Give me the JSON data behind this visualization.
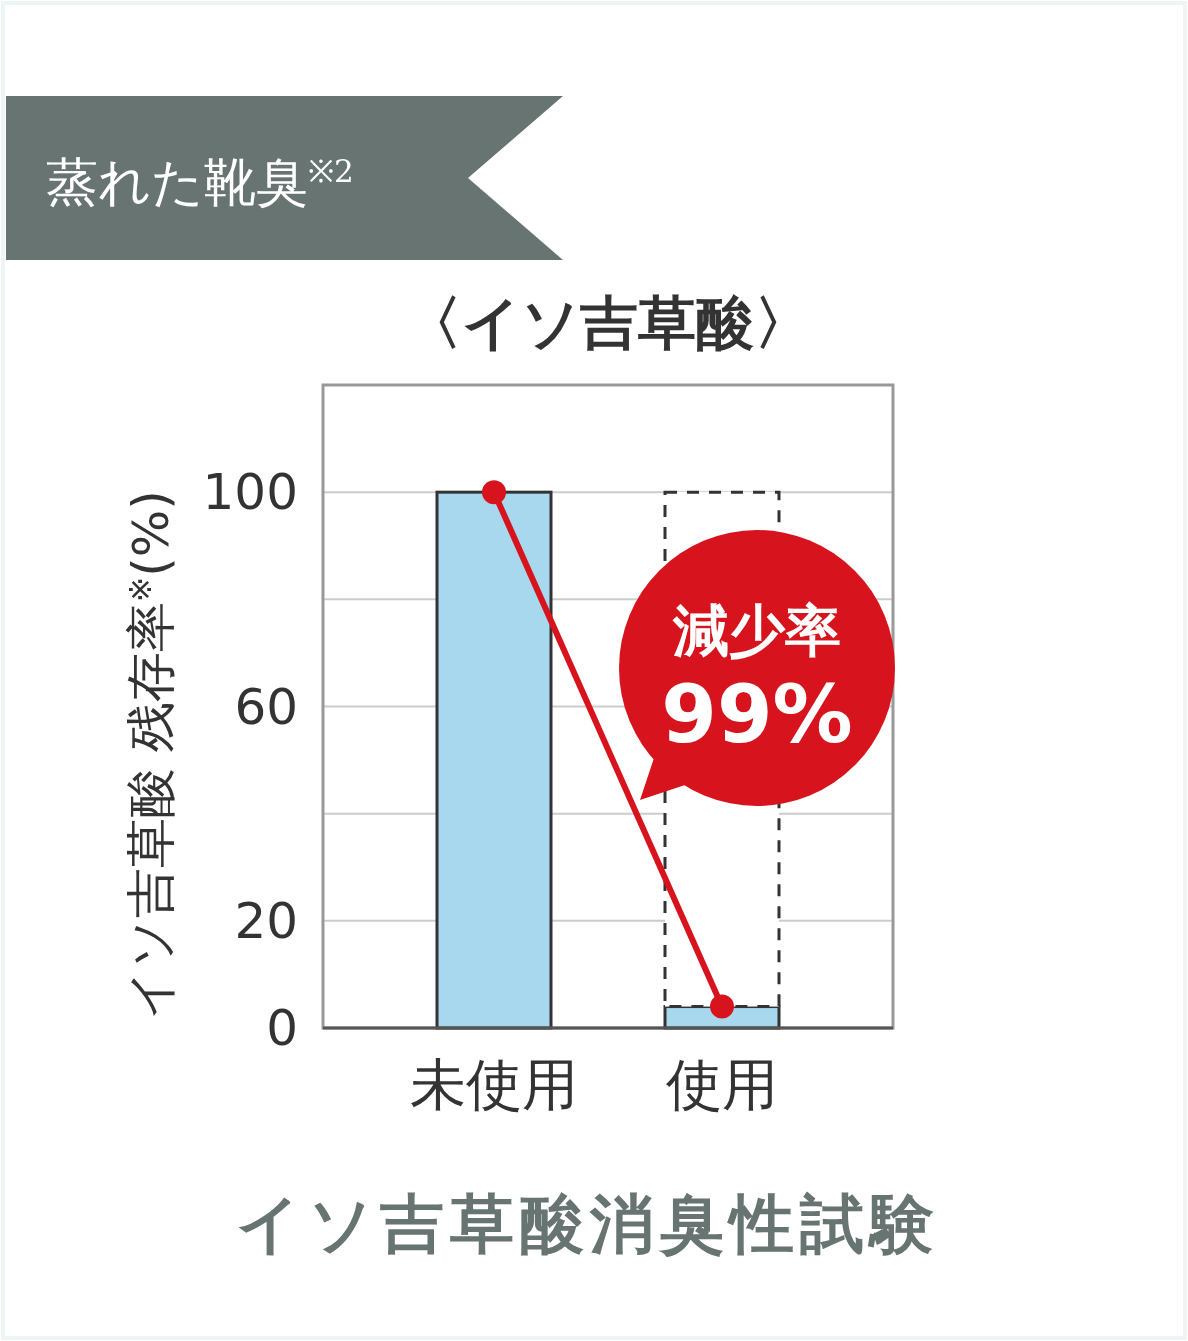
{
  "chart_data": {
    "type": "bar",
    "title": "蒸れた靴臭$^{※2}$",
    "subtitle": "〈イソ吉草酸〉",
    "ylabel": "イソ吉草酸 残存率$^{※}$(%)",
    "categories": [
      "未使用",
      "使用"
    ],
    "series": [
      {
        "color": "#a8d8ee",
        "line_style": "solid",
        "values": [
          100,
          4
        ]
      },
      {
        "color": "#ffffff",
        "line_style": "dashed",
        "values": [
          null,
          96
        ]
      },
      {
        "type": "line",
        "color": "#d7141d",
        "line_style": "solid",
        "marker": "circle",
        "values": [
          100,
          4
        ]
      }
    ],
    "stacked": true,
    "ylim": [
      0,
      120
    ],
    "yticks": [
      0,
      20,
      {
        "value": 40,
        "label": null
      },
      60,
      {
        "value": 80,
        "label": null
      },
      100
    ],
    "grid": "y",
    "annotations": [
      "減少率",
      "99%",
      "イソ吉草酸消臭性試験"
    ]
  }
}
